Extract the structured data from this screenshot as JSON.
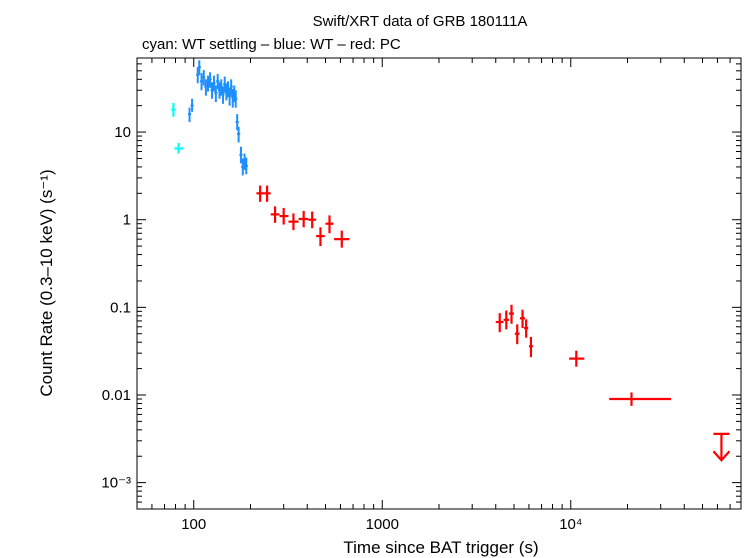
{
  "chart_data": {
    "type": "scatter",
    "title": "Swift/XRT data of GRB 180111A",
    "subtitle": "cyan: WT settling – blue: WT – red: PC",
    "xlabel": "Time since BAT trigger (s)",
    "ylabel": "Count Rate (0.3–10 keV) (s⁻¹)",
    "xscale": "log",
    "yscale": "log",
    "xlim": [
      50,
      80000
    ],
    "ylim": [
      0.0005,
      70
    ],
    "x_ticks": [
      {
        "value": 100,
        "label": "100"
      },
      {
        "value": 1000,
        "label": "1000"
      },
      {
        "value": 10000,
        "label": "10⁴"
      }
    ],
    "y_ticks": [
      {
        "value": 10,
        "label": "10"
      },
      {
        "value": 1,
        "label": "1"
      },
      {
        "value": 0.1,
        "label": "0.1"
      },
      {
        "value": 0.01,
        "label": "0.01"
      },
      {
        "value": 0.001,
        "label": "10⁻³"
      }
    ],
    "colors": {
      "wt_settling": "#00ffff",
      "wt": "#1e8fff",
      "pc": "#ff0000",
      "axis": "#000000"
    },
    "series": [
      {
        "name": "WT settling",
        "color": "#00ffff",
        "points": [
          {
            "x": 78,
            "x_lo": 76,
            "x_hi": 80,
            "y": 18,
            "y_lo": 15,
            "y_hi": 21.5
          },
          {
            "x": 83,
            "x_lo": 79,
            "x_hi": 88,
            "y": 6.5,
            "y_lo": 5.7,
            "y_hi": 7.5
          }
        ]
      },
      {
        "name": "WT",
        "color": "#1e8fff",
        "points": [
          {
            "x": 95,
            "y": 16,
            "y_lo": 13,
            "y_hi": 19
          },
          {
            "x": 98,
            "y": 20,
            "y_lo": 17,
            "y_hi": 24
          },
          {
            "x": 105,
            "y": 45,
            "y_lo": 36,
            "y_hi": 55
          },
          {
            "x": 107,
            "y": 55,
            "y_lo": 45,
            "y_hi": 66
          },
          {
            "x": 110,
            "y": 38,
            "y_lo": 30,
            "y_hi": 47
          },
          {
            "x": 113,
            "y": 42,
            "y_lo": 34,
            "y_hi": 51
          },
          {
            "x": 116,
            "y": 33,
            "y_lo": 26,
            "y_hi": 40
          },
          {
            "x": 119,
            "y": 36,
            "y_lo": 29,
            "y_hi": 44
          },
          {
            "x": 122,
            "y": 40,
            "y_lo": 32,
            "y_hi": 48
          },
          {
            "x": 125,
            "y": 30,
            "y_lo": 24,
            "y_hi": 37
          },
          {
            "x": 128,
            "y": 36,
            "y_lo": 29,
            "y_hi": 44
          },
          {
            "x": 131,
            "y": 28,
            "y_lo": 22,
            "y_hi": 34
          },
          {
            "x": 134,
            "y": 38,
            "y_lo": 31,
            "y_hi": 46
          },
          {
            "x": 137,
            "y": 30,
            "y_lo": 24,
            "y_hi": 37
          },
          {
            "x": 140,
            "y": 33,
            "y_lo": 26,
            "y_hi": 40
          },
          {
            "x": 143,
            "y": 27,
            "y_lo": 21,
            "y_hi": 33
          },
          {
            "x": 146,
            "y": 35,
            "y_lo": 28,
            "y_hi": 43
          },
          {
            "x": 149,
            "y": 29,
            "y_lo": 23,
            "y_hi": 36
          },
          {
            "x": 152,
            "y": 31,
            "y_lo": 25,
            "y_hi": 38
          },
          {
            "x": 155,
            "y": 26,
            "y_lo": 20,
            "y_hi": 32
          },
          {
            "x": 158,
            "y": 33,
            "y_lo": 26,
            "y_hi": 40
          },
          {
            "x": 161,
            "y": 25,
            "y_lo": 19,
            "y_hi": 31
          },
          {
            "x": 164,
            "y": 28,
            "y_lo": 22,
            "y_hi": 34
          },
          {
            "x": 167,
            "y": 24,
            "y_lo": 19,
            "y_hi": 30
          },
          {
            "x": 170,
            "y": 13,
            "y_lo": 10.5,
            "y_hi": 16
          },
          {
            "x": 173,
            "y": 9.5,
            "y_lo": 7.6,
            "y_hi": 11.5
          },
          {
            "x": 178,
            "y": 5.5,
            "y_lo": 4.4,
            "y_hi": 6.8
          },
          {
            "x": 182,
            "y": 4.0,
            "y_lo": 3.2,
            "y_hi": 5.0
          },
          {
            "x": 186,
            "y": 4.6,
            "y_lo": 3.7,
            "y_hi": 5.7
          },
          {
            "x": 190,
            "y": 4.1,
            "y_lo": 3.3,
            "y_hi": 5.1
          }
        ]
      },
      {
        "name": "PC",
        "color": "#ff0000",
        "points": [
          {
            "x": 225,
            "x_lo": 215,
            "x_hi": 236,
            "y": 2.0,
            "y_lo": 1.6,
            "y_hi": 2.45
          },
          {
            "x": 245,
            "x_lo": 236,
            "x_hi": 256,
            "y": 2.0,
            "y_lo": 1.6,
            "y_hi": 2.45
          },
          {
            "x": 270,
            "x_lo": 256,
            "x_hi": 285,
            "y": 1.15,
            "y_lo": 0.92,
            "y_hi": 1.42
          },
          {
            "x": 300,
            "x_lo": 285,
            "x_hi": 318,
            "y": 1.1,
            "y_lo": 0.88,
            "y_hi": 1.36
          },
          {
            "x": 338,
            "x_lo": 318,
            "x_hi": 360,
            "y": 0.95,
            "y_lo": 0.76,
            "y_hi": 1.18
          },
          {
            "x": 383,
            "x_lo": 360,
            "x_hi": 405,
            "y": 1.02,
            "y_lo": 0.82,
            "y_hi": 1.26
          },
          {
            "x": 425,
            "x_lo": 405,
            "x_hi": 446,
            "y": 1.0,
            "y_lo": 0.8,
            "y_hi": 1.24
          },
          {
            "x": 470,
            "x_lo": 446,
            "x_hi": 495,
            "y": 0.65,
            "y_lo": 0.5,
            "y_hi": 0.82
          },
          {
            "x": 525,
            "x_lo": 500,
            "x_hi": 550,
            "y": 0.9,
            "y_lo": 0.7,
            "y_hi": 1.12
          },
          {
            "x": 610,
            "x_lo": 555,
            "x_hi": 670,
            "y": 0.6,
            "y_lo": 0.48,
            "y_hi": 0.75
          },
          {
            "x": 4200,
            "x_lo": 4000,
            "x_hi": 4400,
            "y": 0.068,
            "y_lo": 0.052,
            "y_hi": 0.086
          },
          {
            "x": 4550,
            "x_lo": 4400,
            "x_hi": 4700,
            "y": 0.072,
            "y_lo": 0.056,
            "y_hi": 0.092
          },
          {
            "x": 4850,
            "x_lo": 4700,
            "x_hi": 5000,
            "y": 0.085,
            "y_lo": 0.065,
            "y_hi": 0.107
          },
          {
            "x": 5200,
            "x_lo": 5050,
            "x_hi": 5350,
            "y": 0.05,
            "y_lo": 0.038,
            "y_hi": 0.064
          },
          {
            "x": 5550,
            "x_lo": 5380,
            "x_hi": 5720,
            "y": 0.075,
            "y_lo": 0.058,
            "y_hi": 0.094
          },
          {
            "x": 5800,
            "x_lo": 5650,
            "x_hi": 5950,
            "y": 0.058,
            "y_lo": 0.045,
            "y_hi": 0.073
          },
          {
            "x": 6150,
            "x_lo": 6000,
            "x_hi": 6300,
            "y": 0.036,
            "y_lo": 0.027,
            "y_hi": 0.046
          },
          {
            "x": 10700,
            "x_lo": 9800,
            "x_hi": 11800,
            "y": 0.026,
            "y_lo": 0.021,
            "y_hi": 0.032
          },
          {
            "x": 21000,
            "x_lo": 16000,
            "x_hi": 34000,
            "y": 0.009,
            "y_lo": 0.0075,
            "y_hi": 0.0107
          }
        ]
      }
    ],
    "upper_limits": [
      {
        "series": "PC",
        "x": 63000,
        "y_top": 0.0036,
        "y_bottom": 0.0018,
        "color": "#ff0000"
      }
    ]
  }
}
